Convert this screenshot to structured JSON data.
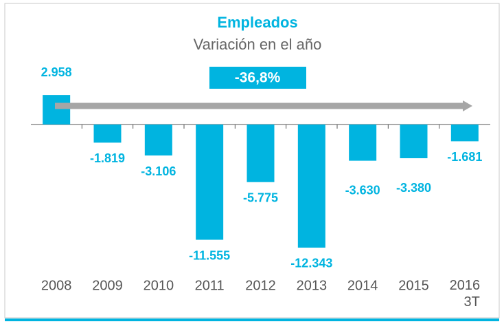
{
  "chart_data": {
    "type": "bar",
    "title": "Empleados",
    "subtitle": "Variación  en el año",
    "annotation": "-36,8%",
    "categories": [
      "2008",
      "2009",
      "2010",
      "2011",
      "2012",
      "2013",
      "2014",
      "2015",
      "2016\n3T"
    ],
    "values": [
      2958,
      -1819,
      -3106,
      -11555,
      -5775,
      -12343,
      -3630,
      -3380,
      -1681
    ],
    "value_labels": [
      "2.958",
      "-1.819",
      "-3.106",
      "-11.555",
      "-5.775",
      "-12.343",
      "-3.630",
      "-3.380",
      "-1.681"
    ],
    "color": "#00b4e0",
    "ylim": [
      -14000,
      5000
    ]
  }
}
